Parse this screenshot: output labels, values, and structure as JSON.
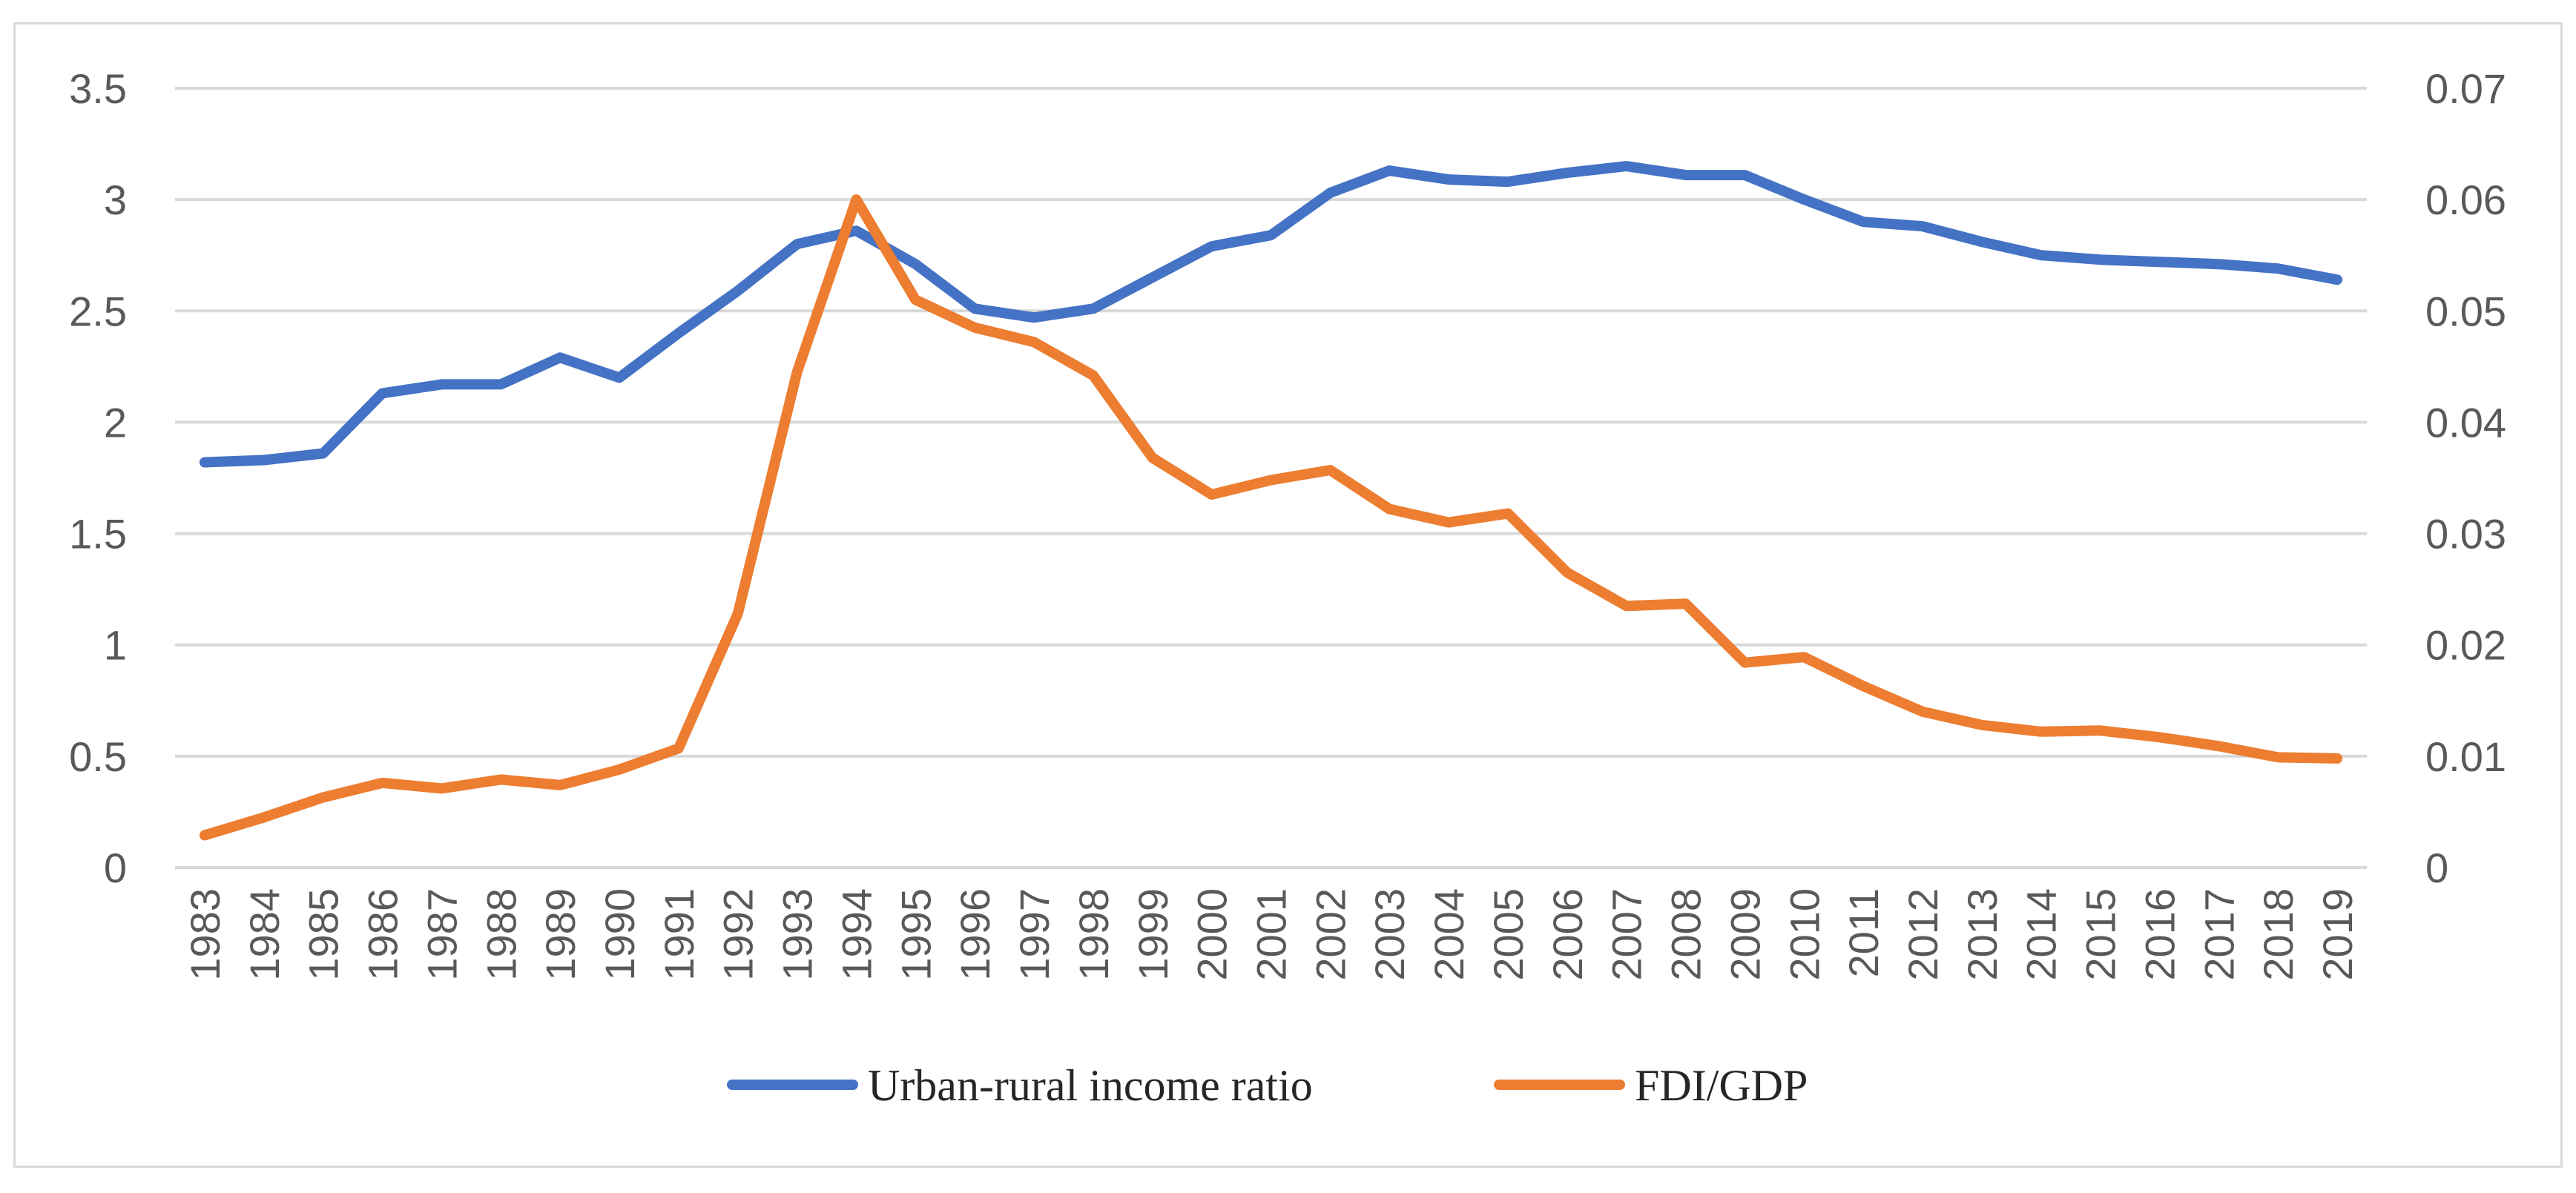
{
  "chart_data": {
    "type": "line",
    "title": "",
    "xlabel": "",
    "ylabel": "",
    "y2label": "",
    "x": [
      "1983",
      "1984",
      "1985",
      "1986",
      "1987",
      "1988",
      "1989",
      "1990",
      "1991",
      "1992",
      "1993",
      "1994",
      "1995",
      "1996",
      "1997",
      "1998",
      "1999",
      "2000",
      "2001",
      "2002",
      "2003",
      "2004",
      "2005",
      "2006",
      "2007",
      "2008",
      "2009",
      "2010",
      "2011",
      "2012",
      "2013",
      "2014",
      "2015",
      "2016",
      "2017",
      "2018",
      "2019"
    ],
    "ylim": [
      0,
      3.5
    ],
    "y2lim": [
      0,
      0.07
    ],
    "y_ticks": [
      "0",
      "0.5",
      "1",
      "1.5",
      "2",
      "2.5",
      "3",
      "3.5"
    ],
    "y2_ticks": [
      "0",
      "0.01",
      "0.02",
      "0.03",
      "0.04",
      "0.05",
      "0.06",
      "0.07"
    ],
    "grid": true,
    "legend_position": "bottom",
    "series": [
      {
        "name": "Urban-rural income ratio",
        "axis": "left",
        "color": "#4472C4",
        "values": [
          1.82,
          1.83,
          1.86,
          2.13,
          2.17,
          2.17,
          2.29,
          2.2,
          2.4,
          2.59,
          2.8,
          2.86,
          2.71,
          2.51,
          2.47,
          2.51,
          2.65,
          2.79,
          2.84,
          3.03,
          3.13,
          3.09,
          3.08,
          3.12,
          3.15,
          3.11,
          3.11,
          3.0,
          2.9,
          2.88,
          2.81,
          2.75,
          2.73,
          2.72,
          2.71,
          2.69,
          2.64
        ]
      },
      {
        "name": "FDI/GDP",
        "axis": "right",
        "color": "#ED7D31",
        "values": [
          0.0029,
          0.0045,
          0.0063,
          0.0076,
          0.0071,
          0.0079,
          0.0074,
          0.0088,
          0.0107,
          0.0228,
          0.0445,
          0.06,
          0.051,
          0.0485,
          0.0472,
          0.0442,
          0.0368,
          0.0335,
          0.0348,
          0.0357,
          0.0322,
          0.031,
          0.0318,
          0.0265,
          0.0235,
          0.0237,
          0.0184,
          0.0189,
          0.0163,
          0.014,
          0.0128,
          0.0122,
          0.0123,
          0.0117,
          0.0109,
          0.0099,
          0.0098
        ]
      }
    ]
  }
}
